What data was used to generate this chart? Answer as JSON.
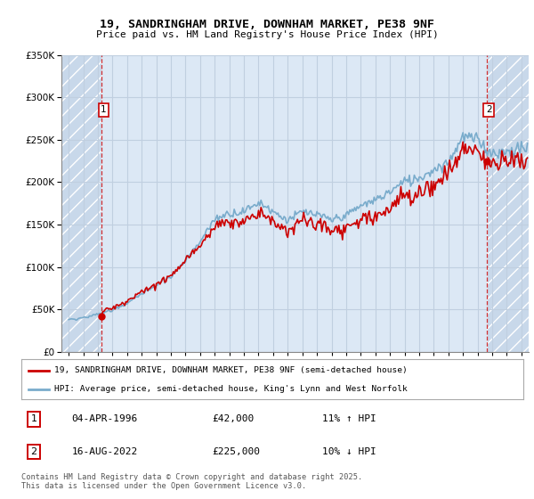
{
  "title_line1": "19, SANDRINGHAM DRIVE, DOWNHAM MARKET, PE38 9NF",
  "title_line2": "Price paid vs. HM Land Registry's House Price Index (HPI)",
  "legend_line1": "19, SANDRINGHAM DRIVE, DOWNHAM MARKET, PE38 9NF (semi-detached house)",
  "legend_line2": "HPI: Average price, semi-detached house, King's Lynn and West Norfolk",
  "footnote": "Contains HM Land Registry data © Crown copyright and database right 2025.\nThis data is licensed under the Open Government Licence v3.0.",
  "marker1_label": "1",
  "marker1_date": "04-APR-1996",
  "marker1_price": "£42,000",
  "marker1_hpi": "11% ↑ HPI",
  "marker2_label": "2",
  "marker2_date": "16-AUG-2022",
  "marker2_price": "£225,000",
  "marker2_hpi": "10% ↓ HPI",
  "purchase1_x": 1996.25,
  "purchase1_y": 42000,
  "purchase2_x": 2022.62,
  "purchase2_y": 225000,
  "ylim": [
    0,
    350000
  ],
  "xlim_left": 1993.5,
  "xlim_right": 2025.5,
  "plot_bg_color": "#dce8f5",
  "hatch_bg_color": "#c8d8ea",
  "red_color": "#cc0000",
  "blue_color": "#7aaccc",
  "grid_color": "#c0cfe0",
  "dashed_color": "#cc0000"
}
